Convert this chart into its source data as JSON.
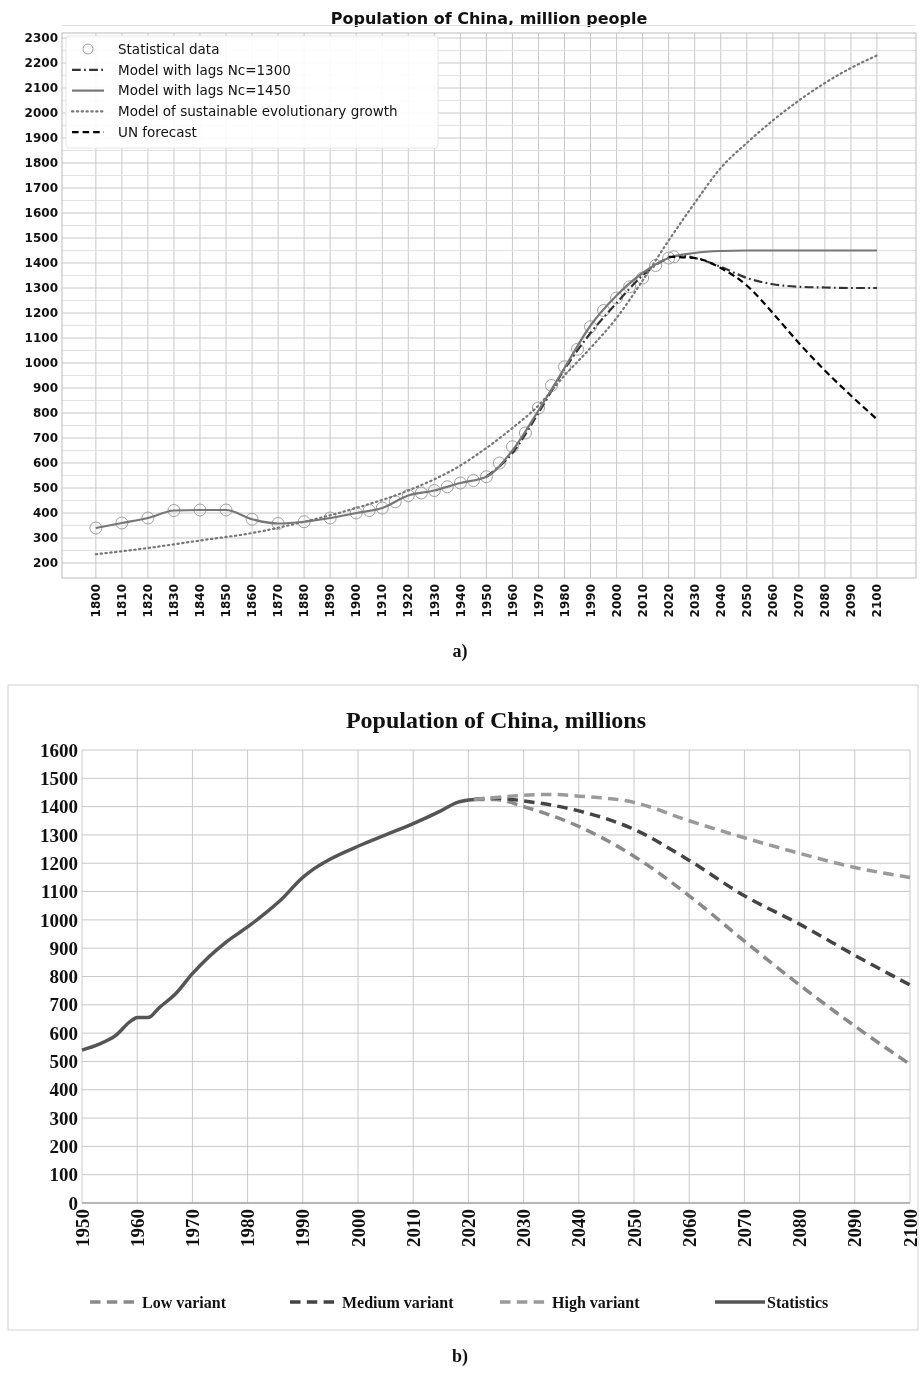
{
  "chart_data": [
    {
      "type": "line",
      "title": "Population of China, million people",
      "annotations": [
        "a)"
      ],
      "legend": "top left",
      "grid": true,
      "xlim": [
        1787,
        2115
      ],
      "xticks": [
        1800,
        1810,
        1820,
        1830,
        1840,
        1850,
        1860,
        1870,
        1880,
        1890,
        1900,
        1910,
        1920,
        1930,
        1940,
        1950,
        1960,
        1970,
        1980,
        1990,
        2000,
        2010,
        2020,
        2030,
        2040,
        2050,
        2060,
        2070,
        2080,
        2090,
        2100
      ],
      "ylim": [
        140,
        2320
      ],
      "yticks": [
        200,
        300,
        400,
        500,
        600,
        700,
        800,
        900,
        1000,
        1100,
        1200,
        1300,
        1400,
        1500,
        1600,
        1700,
        1800,
        1900,
        2000,
        2100,
        2200,
        2300
      ],
      "series": [
        {
          "name": "Statistical data",
          "type": "scatter",
          "marker": "circle",
          "color": "#a0a0a0",
          "x": [
            1800,
            1810,
            1820,
            1830,
            1840,
            1850,
            1860,
            1870,
            1880,
            1890,
            1900,
            1905,
            1910,
            1915,
            1920,
            1925,
            1930,
            1935,
            1940,
            1945,
            1950,
            1955,
            1960,
            1965,
            1970,
            1975,
            1980,
            1985,
            1990,
            1995,
            2000,
            2005,
            2010,
            2015,
            2020,
            2022
          ],
          "values": [
            340,
            360,
            380,
            410,
            412,
            412,
            375,
            358,
            365,
            380,
            400,
            410,
            420,
            445,
            470,
            480,
            490,
            505,
            520,
            530,
            545,
            600,
            665,
            720,
            820,
            910,
            985,
            1055,
            1145,
            1210,
            1260,
            1305,
            1340,
            1390,
            1420,
            1425
          ]
        },
        {
          "name": "Model with lags Nc=1300",
          "type": "line",
          "line_style": "dashdot",
          "color": "#333333",
          "x": [
            1950,
            1960,
            1970,
            1980,
            1990,
            2000,
            2010,
            2020,
            2025,
            2030,
            2040,
            2050,
            2060,
            2070,
            2080,
            2090,
            2100
          ],
          "values": [
            545,
            640,
            800,
            975,
            1120,
            1240,
            1350,
            1420,
            1430,
            1420,
            1385,
            1340,
            1315,
            1305,
            1302,
            1300,
            1300
          ]
        },
        {
          "name": "Model with lags Nc=1450",
          "type": "line",
          "line_style": "solid",
          "color": "#777777",
          "x": [
            1800,
            1810,
            1820,
            1830,
            1840,
            1850,
            1860,
            1870,
            1880,
            1890,
            1900,
            1910,
            1920,
            1930,
            1940,
            1950,
            1960,
            1970,
            1980,
            1990,
            2000,
            2010,
            2020,
            2030,
            2040,
            2050,
            2100
          ],
          "values": [
            340,
            360,
            380,
            410,
            412,
            412,
            375,
            358,
            365,
            380,
            400,
            420,
            470,
            490,
            520,
            545,
            650,
            810,
            980,
            1150,
            1270,
            1360,
            1420,
            1440,
            1448,
            1450,
            1450
          ]
        },
        {
          "name": "Model of sustainable evolutionary growth",
          "type": "line",
          "line_style": "dotted",
          "color": "#777777",
          "x": [
            1800,
            1820,
            1840,
            1860,
            1880,
            1900,
            1920,
            1940,
            1950,
            1960,
            1970,
            1980,
            1990,
            2000,
            2010,
            2020,
            2030,
            2040,
            2050,
            2060,
            2070,
            2080,
            2090,
            2100
          ],
          "values": [
            235,
            260,
            290,
            320,
            365,
            420,
            490,
            590,
            660,
            740,
            830,
            950,
            1060,
            1180,
            1330,
            1490,
            1640,
            1780,
            1880,
            1970,
            2050,
            2120,
            2180,
            2230
          ]
        },
        {
          "name": "UN forecast",
          "type": "line",
          "line_style": "dashed",
          "color": "#000000",
          "x": [
            2020,
            2030,
            2040,
            2050,
            2060,
            2070,
            2080,
            2090,
            2100
          ],
          "values": [
            1425,
            1420,
            1380,
            1310,
            1200,
            1080,
            970,
            870,
            775
          ]
        }
      ]
    },
    {
      "type": "line",
      "title": "Population of China, millions",
      "annotations": [
        "b)"
      ],
      "legend": "bottom",
      "grid": true,
      "xlim": [
        1950,
        2100
      ],
      "xticks": [
        1950,
        1960,
        1970,
        1980,
        1990,
        2000,
        2010,
        2020,
        2030,
        2040,
        2050,
        2060,
        2070,
        2080,
        2090,
        2100
      ],
      "ylim": [
        0,
        1600
      ],
      "yticks": [
        0,
        100,
        200,
        300,
        400,
        500,
        600,
        700,
        800,
        900,
        1000,
        1100,
        1200,
        1300,
        1400,
        1500,
        1600
      ],
      "series": [
        {
          "name": "Low variant",
          "line_style": "dashed",
          "color": "#8a8a8a",
          "x": [
            2021,
            2025,
            2030,
            2040,
            2050,
            2060,
            2070,
            2080,
            2090,
            2100
          ],
          "values": [
            1425,
            1425,
            1400,
            1330,
            1225,
            1085,
            925,
            770,
            625,
            490
          ]
        },
        {
          "name": "Medium variant",
          "line_style": "dashed",
          "color": "#444444",
          "x": [
            2021,
            2025,
            2030,
            2040,
            2050,
            2060,
            2070,
            2080,
            2090,
            2100
          ],
          "values": [
            1425,
            1430,
            1420,
            1385,
            1320,
            1210,
            1085,
            985,
            875,
            770
          ]
        },
        {
          "name": "High variant",
          "line_style": "dashed",
          "color": "#9a9a9a",
          "x": [
            2021,
            2025,
            2030,
            2035,
            2040,
            2050,
            2060,
            2070,
            2080,
            2090,
            2100
          ],
          "values": [
            1425,
            1432,
            1440,
            1443,
            1437,
            1415,
            1350,
            1290,
            1235,
            1185,
            1150
          ]
        },
        {
          "name": "Statistics",
          "line_style": "solid",
          "color": "#555555",
          "x": [
            1950,
            1953,
            1956,
            1959,
            1960,
            1962,
            1964,
            1967,
            1970,
            1973,
            1976,
            1980,
            1983,
            1986,
            1990,
            1992,
            1995,
            2000,
            2005,
            2010,
            2015,
            2018,
            2021
          ],
          "values": [
            540,
            560,
            590,
            645,
            655,
            655,
            690,
            740,
            810,
            870,
            920,
            975,
            1020,
            1070,
            1150,
            1180,
            1215,
            1260,
            1300,
            1340,
            1385,
            1415,
            1425
          ]
        }
      ]
    }
  ]
}
